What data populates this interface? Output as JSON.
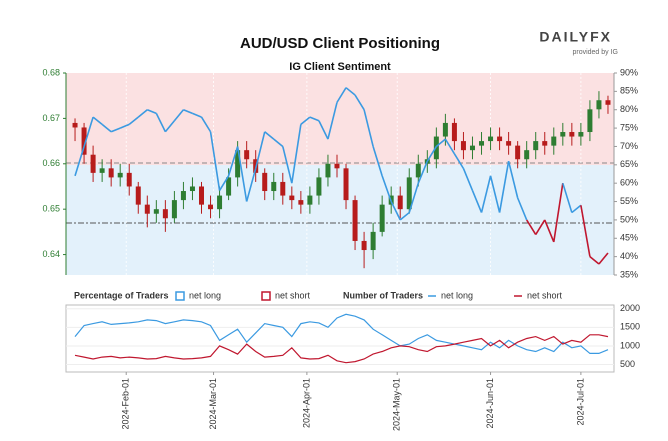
{
  "logo": {
    "brand": "DAILYFX",
    "provided_by": "provided by IG"
  },
  "chart_data": [
    {
      "type": "candlestick",
      "title": "AUD/USD Client Positioning",
      "subtitle": "IG Client Sentiment",
      "x": [
        "2024-01-15",
        "2024-01-18",
        "2024-01-21",
        "2024-01-24",
        "2024-01-27",
        "2024-01-30",
        "2024-02-02",
        "2024-02-05",
        "2024-02-08",
        "2024-02-11",
        "2024-02-14",
        "2024-02-17",
        "2024-02-20",
        "2024-02-23",
        "2024-02-26",
        "2024-02-29",
        "2024-03-03",
        "2024-03-06",
        "2024-03-09",
        "2024-03-12",
        "2024-03-15",
        "2024-03-18",
        "2024-03-21",
        "2024-03-24",
        "2024-03-27",
        "2024-03-30",
        "2024-04-02",
        "2024-04-05",
        "2024-04-08",
        "2024-04-11",
        "2024-04-14",
        "2024-04-17",
        "2024-04-20",
        "2024-04-23",
        "2024-04-26",
        "2024-04-29",
        "2024-05-02",
        "2024-05-05",
        "2024-05-08",
        "2024-05-11",
        "2024-05-14",
        "2024-05-17",
        "2024-05-20",
        "2024-05-23",
        "2024-05-26",
        "2024-05-29",
        "2024-06-01",
        "2024-06-04",
        "2024-06-07",
        "2024-06-10",
        "2024-06-13",
        "2024-06-16",
        "2024-06-19",
        "2024-06-22",
        "2024-06-25",
        "2024-06-28",
        "2024-07-01",
        "2024-07-04",
        "2024-07-07",
        "2024-07-10"
      ],
      "open": [
        0.669,
        0.668,
        0.662,
        0.658,
        0.659,
        0.657,
        0.658,
        0.655,
        0.651,
        0.649,
        0.65,
        0.648,
        0.652,
        0.654,
        0.655,
        0.651,
        0.65,
        0.653,
        0.657,
        0.663,
        0.661,
        0.658,
        0.654,
        0.656,
        0.653,
        0.652,
        0.651,
        0.653,
        0.657,
        0.66,
        0.659,
        0.652,
        0.643,
        0.641,
        0.645,
        0.651,
        0.653,
        0.65,
        0.657,
        0.66,
        0.661,
        0.666,
        0.669,
        0.665,
        0.663,
        0.664,
        0.665,
        0.666,
        0.665,
        0.664,
        0.661,
        0.663,
        0.665,
        0.664,
        0.666,
        0.667,
        0.666,
        0.667,
        0.672,
        0.674
      ],
      "high": [
        0.67,
        0.669,
        0.664,
        0.661,
        0.661,
        0.66,
        0.66,
        0.656,
        0.653,
        0.652,
        0.652,
        0.654,
        0.656,
        0.657,
        0.656,
        0.653,
        0.655,
        0.659,
        0.665,
        0.665,
        0.663,
        0.659,
        0.658,
        0.658,
        0.655,
        0.654,
        0.655,
        0.659,
        0.662,
        0.662,
        0.66,
        0.653,
        0.645,
        0.647,
        0.653,
        0.655,
        0.655,
        0.659,
        0.662,
        0.663,
        0.668,
        0.671,
        0.67,
        0.667,
        0.666,
        0.667,
        0.668,
        0.668,
        0.667,
        0.665,
        0.665,
        0.667,
        0.667,
        0.668,
        0.669,
        0.669,
        0.669,
        0.674,
        0.676,
        0.675
      ],
      "low": [
        0.665,
        0.66,
        0.656,
        0.656,
        0.655,
        0.655,
        0.653,
        0.649,
        0.646,
        0.647,
        0.645,
        0.647,
        0.65,
        0.652,
        0.649,
        0.648,
        0.648,
        0.652,
        0.655,
        0.659,
        0.656,
        0.652,
        0.652,
        0.651,
        0.65,
        0.649,
        0.649,
        0.651,
        0.655,
        0.657,
        0.65,
        0.641,
        0.637,
        0.639,
        0.644,
        0.649,
        0.648,
        0.649,
        0.655,
        0.658,
        0.659,
        0.664,
        0.663,
        0.661,
        0.661,
        0.662,
        0.663,
        0.663,
        0.662,
        0.659,
        0.659,
        0.661,
        0.662,
        0.662,
        0.664,
        0.664,
        0.664,
        0.665,
        0.67,
        0.671
      ],
      "close": [
        0.668,
        0.662,
        0.658,
        0.659,
        0.657,
        0.658,
        0.655,
        0.651,
        0.649,
        0.65,
        0.648,
        0.652,
        0.654,
        0.655,
        0.651,
        0.65,
        0.653,
        0.657,
        0.663,
        0.661,
        0.658,
        0.654,
        0.656,
        0.653,
        0.652,
        0.651,
        0.653,
        0.657,
        0.66,
        0.659,
        0.652,
        0.643,
        0.641,
        0.645,
        0.651,
        0.653,
        0.65,
        0.657,
        0.66,
        0.661,
        0.666,
        0.669,
        0.665,
        0.663,
        0.664,
        0.665,
        0.666,
        0.665,
        0.664,
        0.661,
        0.663,
        0.665,
        0.664,
        0.666,
        0.667,
        0.666,
        0.667,
        0.672,
        0.674,
        0.673
      ],
      "up_color": "#2e7d32",
      "down_color": "#b71c1c",
      "series": [
        {
          "name": "net long",
          "axis": "y2",
          "color": "#3b9ae1",
          "values": [
            62,
            70,
            78,
            76,
            74,
            75,
            76,
            78,
            80,
            79,
            74,
            77,
            80,
            79,
            78,
            74,
            58,
            62,
            70,
            55,
            64,
            74,
            72,
            70,
            60,
            76,
            78,
            77,
            72,
            82,
            86,
            84,
            80,
            70,
            62,
            55,
            50,
            52,
            60,
            66,
            70,
            72,
            68,
            64,
            58,
            52,
            62,
            52,
            66,
            56,
            50,
            46,
            50,
            44,
            60,
            52,
            54,
            40,
            38,
            41
          ]
        }
      ],
      "legend": {
        "title": "Percentage of Traders",
        "items": [
          {
            "name": "net long",
            "color": "#3b9ae1"
          },
          {
            "name": "net short",
            "color": "#c0172f"
          }
        ]
      },
      "xlim": [
        "2024-01-12",
        "2024-07-12"
      ],
      "xticks": [
        {
          "value": "2024-02-01",
          "label": "2024-Feb-01"
        },
        {
          "value": "2024-03-01",
          "label": "2024-Mar-01"
        },
        {
          "value": "2024-04-01",
          "label": "2024-Apr-01"
        },
        {
          "value": "2024-05-01",
          "label": "2024-May-01"
        },
        {
          "value": "2024-06-01",
          "label": "2024-Jun-01"
        },
        {
          "value": "2024-07-01",
          "label": "2024-Jul-01"
        }
      ],
      "ylim": [
        0.6355,
        0.68
      ],
      "yticks": [
        0.64,
        0.65,
        0.66,
        0.67,
        0.68
      ],
      "y2lim": [
        35,
        90
      ],
      "y2ticks": [
        {
          "value": 35,
          "label": "35%"
        },
        {
          "value": 40,
          "label": "40%"
        },
        {
          "value": 45,
          "label": "45%"
        },
        {
          "value": 50,
          "label": "50%"
        },
        {
          "value": 55,
          "label": "55%"
        },
        {
          "value": 60,
          "label": "60%"
        },
        {
          "value": 65,
          "label": "65%"
        },
        {
          "value": 70,
          "label": "70%"
        },
        {
          "value": 75,
          "label": "75%"
        },
        {
          "value": 80,
          "label": "80%"
        },
        {
          "value": 85,
          "label": "85%"
        },
        {
          "value": 90,
          "label": "90%"
        }
      ],
      "grid": true
    },
    {
      "type": "line",
      "legend_title": "Number of Traders",
      "series": [
        {
          "name": "net long",
          "color": "#3b9ae1",
          "values": [
            1250,
            1550,
            1600,
            1650,
            1580,
            1600,
            1620,
            1650,
            1700,
            1680,
            1600,
            1650,
            1700,
            1680,
            1650,
            1550,
            1150,
            1300,
            1450,
            1100,
            1350,
            1600,
            1550,
            1500,
            1250,
            1600,
            1650,
            1620,
            1500,
            1750,
            1850,
            1800,
            1700,
            1450,
            1300,
            1150,
            1000,
            1050,
            1200,
            1300,
            1150,
            1100,
            1050,
            1000,
            950,
            900,
            1100,
            950,
            1150,
            1000,
            900,
            850,
            950,
            850,
            1100,
            950,
            1000,
            800,
            800,
            900
          ]
        },
        {
          "name": "net short",
          "color": "#c0172f",
          "values": [
            750,
            700,
            650,
            700,
            720,
            680,
            700,
            680,
            650,
            660,
            720,
            680,
            650,
            660,
            680,
            720,
            1000,
            900,
            780,
            1050,
            850,
            700,
            720,
            750,
            950,
            680,
            650,
            660,
            750,
            600,
            550,
            580,
            650,
            780,
            850,
            950,
            1000,
            980,
            900,
            850,
            980,
            1000,
            1050,
            1100,
            1150,
            1200,
            1000,
            1150,
            950,
            1100,
            1200,
            1250,
            1150,
            1250,
            1050,
            1150,
            1100,
            1300,
            1300,
            1250
          ]
        }
      ],
      "ylim": [
        300,
        2100
      ],
      "yticks": [
        500,
        1000,
        1500,
        2000
      ],
      "grid": true
    }
  ]
}
